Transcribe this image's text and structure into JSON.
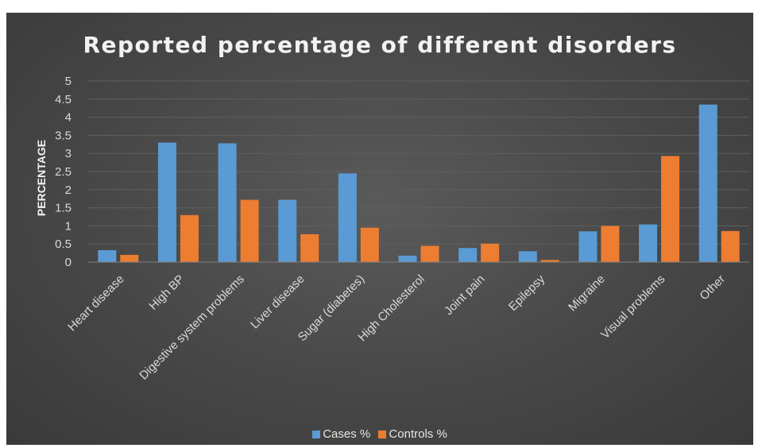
{
  "colors": {
    "cases": "#5b9bd5",
    "controls": "#ed7d31",
    "grid": "#5f5f5f"
  },
  "chart_data": {
    "type": "bar",
    "title": "Reported percentage of different disorders",
    "ylabel": "PERCENTAGE",
    "xlabel": "",
    "ylim": [
      0,
      5
    ],
    "yticks": [
      "0",
      "0.5",
      "1",
      "1.5",
      "2",
      "2.5",
      "3",
      "3.5",
      "4",
      "4.5",
      "5"
    ],
    "grid": true,
    "legend_position": "bottom",
    "categories": [
      "Heart disease",
      "High BP",
      "Digestive system problems",
      "Liver disease",
      "Sugar (diabetes)",
      "High Cholesterol",
      "Joint pain",
      "Epilepsy",
      "Migraine",
      "Visual problems",
      "Other"
    ],
    "series": [
      {
        "name": "Cases %",
        "values": [
          0.33,
          3.3,
          3.28,
          1.72,
          2.45,
          0.18,
          0.39,
          0.3,
          0.85,
          1.04,
          4.35
        ]
      },
      {
        "name": "Controls %",
        "values": [
          0.2,
          1.3,
          1.72,
          0.77,
          0.95,
          0.45,
          0.51,
          0.06,
          1.0,
          2.93,
          0.86
        ]
      }
    ]
  }
}
